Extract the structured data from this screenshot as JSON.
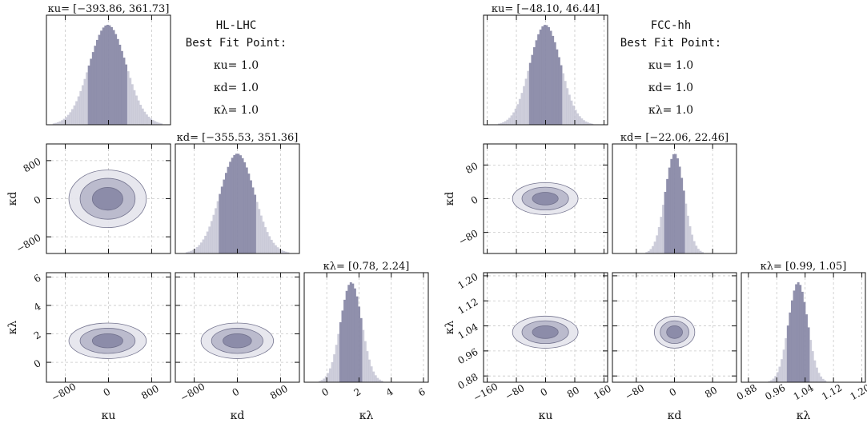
{
  "figure": {
    "accent": "#8a8aa6",
    "fill_dark": "#8a8aa8",
    "fill_mid": "#b9b9cc",
    "fill_light": "#e6e6ee",
    "edge": "#6e6e8a"
  },
  "chart_data": [
    {
      "type": "corner",
      "collider": "HL-LHC",
      "info_title": "HL-LHC",
      "info_subtitle": "Best Fit Point:",
      "best_fit": [
        {
          "label": "κu= 1.0"
        },
        {
          "label": "κd= 1.0"
        },
        {
          "label": "κλ= 1.0"
        }
      ],
      "parameters": [
        {
          "name": "κu",
          "interval_label": "κu= [−393.86, 361.73]",
          "interval": [
            -393.86,
            361.73
          ],
          "best_fit": 1.0,
          "range": [
            -1150,
            1150
          ],
          "ticks": [
            -800,
            0,
            800
          ],
          "tick_labels": [
            "−800",
            "0",
            "800"
          ]
        },
        {
          "name": "κd",
          "interval_label": "κd= [−355.53, 351.36]",
          "interval": [
            -355.53,
            351.36
          ],
          "best_fit": 1.0,
          "range": [
            -1150,
            1150
          ],
          "ticks": [
            -800,
            0,
            800
          ],
          "tick_labels": [
            "−800",
            "0",
            "800"
          ]
        },
        {
          "name": "κλ",
          "interval_label": "κλ= [0.78, 2.24]",
          "interval": [
            0.78,
            2.24
          ],
          "best_fit": 1.0,
          "range": [
            -1.4,
            6.3
          ],
          "ticks": [
            0,
            2,
            4,
            6
          ],
          "tick_labels": [
            "0",
            "2",
            "4",
            "6"
          ]
        }
      ],
      "x_axis_labels": [
        "κu",
        "κd",
        "κλ"
      ],
      "y_axis_labels": [
        "κd",
        "κλ"
      ],
      "grid": true
    },
    {
      "type": "corner",
      "collider": "FCC-hh",
      "info_title": "FCC-hh",
      "info_subtitle": "Best Fit Point:",
      "best_fit": [
        {
          "label": "κu= 1.0"
        },
        {
          "label": "κd= 1.0"
        },
        {
          "label": "κλ= 1.0"
        }
      ],
      "parameters": [
        {
          "name": "κu",
          "interval_label": "κu= [−48.10, 46.44]",
          "interval": [
            -48.1,
            46.44
          ],
          "best_fit": 1.0,
          "range": [
            -170,
            170
          ],
          "ticks": [
            -160,
            -80,
            0,
            80,
            160
          ],
          "tick_labels": [
            "−160",
            "−80",
            "0",
            "80",
            "160"
          ]
        },
        {
          "name": "κd",
          "interval_label": "κd= [−22.06, 22.46]",
          "interval": [
            -22.06,
            22.46
          ],
          "best_fit": 1.0,
          "range": [
            -130,
            130
          ],
          "ticks": [
            -80,
            0,
            80
          ],
          "tick_labels": [
            "−80",
            "0",
            "80"
          ]
        },
        {
          "name": "κλ",
          "interval_label": "κλ= [0.99, 1.05]",
          "interval": [
            0.99,
            1.05
          ],
          "best_fit": 1.0,
          "range": [
            0.86,
            1.21
          ],
          "ticks": [
            0.88,
            0.96,
            1.04,
            1.12,
            1.2
          ],
          "tick_labels": [
            "0.88",
            "0.96",
            "1.04",
            "1.12",
            "1.20"
          ]
        }
      ],
      "x_axis_labels": [
        "κu",
        "κd",
        "κλ"
      ],
      "y_axis_labels": [
        "κd",
        "κλ"
      ],
      "grid": true
    }
  ]
}
